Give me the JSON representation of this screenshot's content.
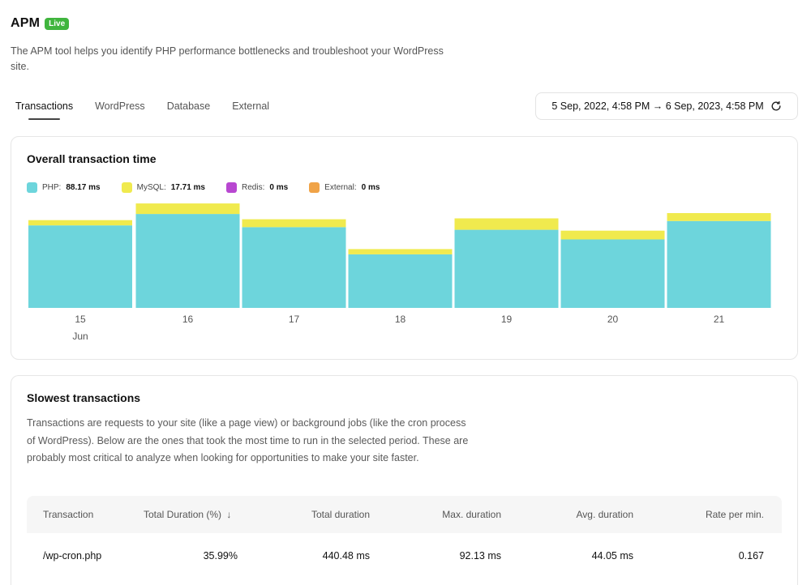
{
  "app": {
    "title": "APM",
    "badge": "Live"
  },
  "description": "The APM tool helps you identify PHP performance bottlenecks and troubleshoot your WordPress site.",
  "tabs": [
    {
      "label": "Transactions",
      "active": true
    },
    {
      "label": "WordPress",
      "active": false
    },
    {
      "label": "Database",
      "active": false
    },
    {
      "label": "External",
      "active": false
    }
  ],
  "date_range": {
    "label": "5 Sep, 2022, 4:58 PM → 6 Sep, 2023, 4:58 PM",
    "icon": "refresh-icon"
  },
  "overall": {
    "title": "Overall transaction time",
    "legend": [
      {
        "name": "PHP:",
        "value": "88.17 ms",
        "color": "#6dd5dc"
      },
      {
        "name": "MySQL:",
        "value": "17.71 ms",
        "color": "#f0ea4e"
      },
      {
        "name": "Redis:",
        "value": "0 ms",
        "color": "#b847d1"
      },
      {
        "name": "External:",
        "value": "0 ms",
        "color": "#f0a347"
      }
    ]
  },
  "chart_data": {
    "type": "bar",
    "stacked": true,
    "categories": [
      "15",
      "16",
      "17",
      "18",
      "19",
      "20",
      "21"
    ],
    "x_sublabel": "Jun",
    "series": [
      {
        "name": "PHP",
        "color": "#6dd5dc",
        "values": [
          94,
          107,
          92,
          61,
          89,
          78,
          99
        ]
      },
      {
        "name": "MySQL",
        "color": "#f0ea4e",
        "values": [
          6,
          12,
          9,
          6,
          13,
          10,
          9
        ]
      },
      {
        "name": "Redis",
        "color": "#b847d1",
        "values": [
          0,
          0,
          0,
          0,
          0,
          0,
          0
        ]
      },
      {
        "name": "External",
        "color": "#f0a347",
        "values": [
          0,
          0,
          0,
          0,
          0,
          0,
          0
        ]
      }
    ],
    "ylim": [
      0,
      120
    ],
    "grid": false
  },
  "slowest": {
    "title": "Slowest transactions",
    "description": "Transactions are requests to your site (like a page view) or background jobs (like the cron process of WordPress). Below are the ones that took the most time to run in the selected period. These are probably most critical to analyze when looking for opportunities to make your site faster.",
    "columns": [
      "Transaction",
      "Total Duration (%)",
      "Total duration",
      "Max. duration",
      "Avg. duration",
      "Rate per min."
    ],
    "sort_icon": "↓",
    "rows": [
      [
        "/wp-cron.php",
        "35.99%",
        "440.48 ms",
        "92.13 ms",
        "44.05 ms",
        "0.167"
      ]
    ]
  }
}
